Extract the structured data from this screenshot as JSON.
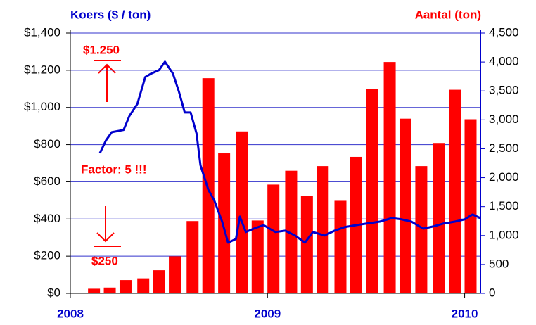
{
  "chart_data": {
    "type": "bar_line",
    "y_title": "Koers ($ / ton)",
    "y2_title": "Aantal (ton)",
    "annotations": [
      "$1.250",
      "Factor: 5 !!!",
      "$250"
    ],
    "xlim": [
      2008,
      2010.08
    ],
    "xticks": [
      2008,
      2009,
      2010
    ],
    "ylim": [
      0,
      1400
    ],
    "yticks": [
      {
        "value": 0,
        "label": "$0"
      },
      {
        "value": 200,
        "label": "$200"
      },
      {
        "value": 400,
        "label": "$400"
      },
      {
        "value": 600,
        "label": "$600"
      },
      {
        "value": 800,
        "label": "$800"
      },
      {
        "value": 1000,
        "label": "$1,000"
      },
      {
        "value": 1200,
        "label": "$1,200"
      },
      {
        "value": 1400,
        "label": "$1,400"
      }
    ],
    "y2lim": [
      0,
      4500
    ],
    "y2ticks": [
      0,
      500,
      {
        "value": 1000,
        "label": "1,000"
      },
      {
        "value": 1500,
        "label": "1,500"
      },
      {
        "value": 2000,
        "label": "2,000"
      },
      {
        "value": 2500,
        "label": "2,500"
      },
      {
        "value": 3000,
        "label": "3,000"
      },
      {
        "value": 3500,
        "label": "3,500"
      },
      {
        "value": 4000,
        "label": "4,000"
      },
      {
        "value": 4500,
        "label": "4,500"
      }
    ],
    "grid": true,
    "bars": {
      "axis": "y2",
      "color": "#ff0000",
      "x": [
        2008.12,
        2008.2,
        2008.28,
        2008.37,
        2008.45,
        2008.53,
        2008.62,
        2008.7,
        2008.78,
        2008.87,
        2008.95,
        2009.03,
        2009.12,
        2009.2,
        2009.28,
        2009.37,
        2009.45,
        2009.53,
        2009.62,
        2009.7,
        2009.78,
        2009.87,
        2009.95,
        2010.03
      ],
      "values": [
        80,
        100,
        230,
        260,
        400,
        640,
        1250,
        3720,
        2420,
        2800,
        1260,
        1880,
        2120,
        1680,
        2200,
        1600,
        2360,
        3530,
        4000,
        3020,
        2200,
        2600,
        3520,
        3010
      ]
    },
    "line": {
      "color": "#0000cc",
      "x": [
        2008.15,
        2008.18,
        2008.21,
        2008.27,
        2008.3,
        2008.34,
        2008.38,
        2008.41,
        2008.45,
        2008.48,
        2008.52,
        2008.55,
        2008.58,
        2008.61,
        2008.64,
        2008.66,
        2008.7,
        2008.73,
        2008.77,
        2008.8,
        2008.84,
        2008.86,
        2008.89,
        2008.93,
        2008.98,
        2009.04,
        2009.09,
        2009.14,
        2009.19,
        2009.23,
        2009.29,
        2009.34,
        2009.39,
        2009.45,
        2009.5,
        2009.57,
        2009.63,
        2009.68,
        2009.73,
        2009.79,
        2009.84,
        2009.89,
        2009.95,
        2010,
        2010.04,
        2010.08
      ],
      "values": [
        754,
        822,
        867,
        879,
        955,
        1019,
        1163,
        1182,
        1201,
        1246,
        1182,
        1087,
        973,
        973,
        860,
        689,
        557,
        500,
        386,
        273,
        292,
        413,
        330,
        348,
        367,
        330,
        337,
        311,
        273,
        330,
        311,
        337,
        356,
        367,
        375,
        386,
        405,
        398,
        386,
        348,
        360,
        375,
        386,
        398,
        424,
        405
      ]
    }
  }
}
